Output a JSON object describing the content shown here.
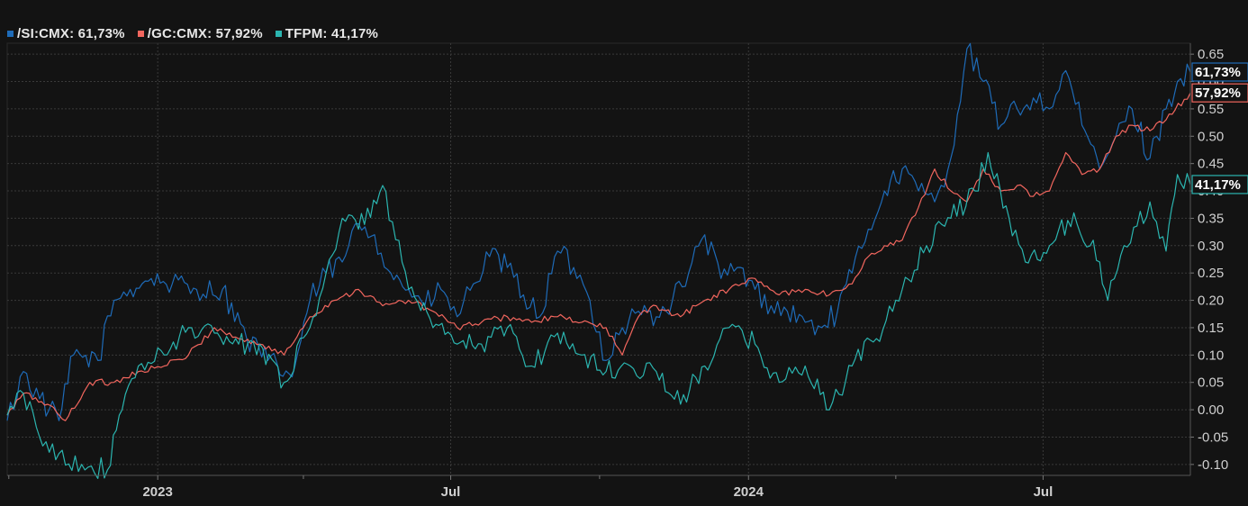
{
  "legend": [
    {
      "label": "/SI:CMX: 61,73%",
      "color": "#1e6bb8"
    },
    {
      "label": "/GC:CMX: 57,92%",
      "color": "#f2665e"
    },
    {
      "label": "TFPM: 41,17%",
      "color": "#2bb5b0"
    }
  ],
  "chart_data": {
    "type": "line",
    "x_range": [
      "2022-09-30",
      "2024-09-30"
    ],
    "ylim": [
      -0.12,
      0.67
    ],
    "y_ticks": [
      -0.1,
      -0.05,
      0.0,
      0.05,
      0.1,
      0.15,
      0.2,
      0.25,
      0.3,
      0.35,
      0.4,
      0.45,
      0.5,
      0.55,
      0.6,
      0.65
    ],
    "y_tick_labels": [
      "-0.10",
      "-0.05",
      "0.00",
      "0.05",
      "0.10",
      "0.15",
      "0.20",
      "0.25",
      "0.30",
      "0.35",
      "0.40",
      "0.45",
      "0.50",
      "0.55",
      "0.60",
      "0.65"
    ],
    "x_labels": [
      {
        "date": "2023-01-01",
        "label": "2023"
      },
      {
        "date": "2023-07-01",
        "label": "Jul"
      },
      {
        "date": "2024-01-01",
        "label": "2024"
      },
      {
        "date": "2024-07-01",
        "label": "Jul"
      }
    ],
    "x_minor_ticks": [
      "2022-10-01",
      "2023-04-01",
      "2023-10-01",
      "2024-04-01"
    ],
    "grid": true,
    "legend_position": "top-left",
    "series": [
      {
        "name": "/SI:CMX",
        "color": "#1e6bb8",
        "last_label": "61,73%",
        "last_value": 0.6173,
        "points": [
          [
            "2022-09-30",
            -0.02
          ],
          [
            "2022-10-10",
            0.07
          ],
          [
            "2022-10-20",
            0.02
          ],
          [
            "2022-11-01",
            -0.02
          ],
          [
            "2022-11-10",
            0.1
          ],
          [
            "2022-11-25",
            0.09
          ],
          [
            "2022-12-05",
            0.2
          ],
          [
            "2022-12-15",
            0.22
          ],
          [
            "2022-12-28",
            0.24
          ],
          [
            "2023-01-10",
            0.23
          ],
          [
            "2023-01-25",
            0.22
          ],
          [
            "2023-02-10",
            0.22
          ],
          [
            "2023-02-25",
            0.13
          ],
          [
            "2023-03-10",
            0.09
          ],
          [
            "2023-03-25",
            0.06
          ],
          [
            "2023-04-05",
            0.2
          ],
          [
            "2023-04-15",
            0.25
          ],
          [
            "2023-04-25",
            0.27
          ],
          [
            "2023-05-05",
            0.34
          ],
          [
            "2023-05-15",
            0.32
          ],
          [
            "2023-05-25",
            0.25
          ],
          [
            "2023-06-05",
            0.22
          ],
          [
            "2023-06-15",
            0.19
          ],
          [
            "2023-06-25",
            0.22
          ],
          [
            "2023-07-05",
            0.17
          ],
          [
            "2023-07-15",
            0.23
          ],
          [
            "2023-07-25",
            0.28
          ],
          [
            "2023-08-05",
            0.26
          ],
          [
            "2023-08-15",
            0.21
          ],
          [
            "2023-08-25",
            0.17
          ],
          [
            "2023-09-05",
            0.29
          ],
          [
            "2023-09-15",
            0.26
          ],
          [
            "2023-09-25",
            0.2
          ],
          [
            "2023-10-05",
            0.09
          ],
          [
            "2023-10-15",
            0.15
          ],
          [
            "2023-10-25",
            0.18
          ],
          [
            "2023-11-05",
            0.17
          ],
          [
            "2023-11-15",
            0.2
          ],
          [
            "2023-11-25",
            0.25
          ],
          [
            "2023-12-05",
            0.32
          ],
          [
            "2023-12-15",
            0.24
          ],
          [
            "2023-12-25",
            0.26
          ],
          [
            "2024-01-05",
            0.22
          ],
          [
            "2024-01-15",
            0.19
          ],
          [
            "2024-01-25",
            0.18
          ],
          [
            "2024-02-05",
            0.16
          ],
          [
            "2024-02-15",
            0.15
          ],
          [
            "2024-02-25",
            0.18
          ],
          [
            "2024-03-05",
            0.25
          ],
          [
            "2024-03-15",
            0.33
          ],
          [
            "2024-03-25",
            0.4
          ],
          [
            "2024-04-05",
            0.44
          ],
          [
            "2024-04-15",
            0.4
          ],
          [
            "2024-04-25",
            0.38
          ],
          [
            "2024-05-05",
            0.46
          ],
          [
            "2024-05-15",
            0.66
          ],
          [
            "2024-05-25",
            0.6
          ],
          [
            "2024-06-05",
            0.52
          ],
          [
            "2024-06-15",
            0.55
          ],
          [
            "2024-06-25",
            0.57
          ],
          [
            "2024-07-05",
            0.55
          ],
          [
            "2024-07-15",
            0.62
          ],
          [
            "2024-07-25",
            0.52
          ],
          [
            "2024-08-05",
            0.44
          ],
          [
            "2024-08-15",
            0.5
          ],
          [
            "2024-08-25",
            0.55
          ],
          [
            "2024-09-05",
            0.46
          ],
          [
            "2024-09-15",
            0.55
          ],
          [
            "2024-09-22",
            0.6
          ],
          [
            "2024-09-30",
            0.6173
          ]
        ]
      },
      {
        "name": "/GC:CMX",
        "color": "#f2665e",
        "last_label": "57,92%",
        "last_value": 0.5792,
        "points": [
          [
            "2022-09-30",
            -0.01
          ],
          [
            "2022-10-10",
            0.03
          ],
          [
            "2022-10-25",
            0.01
          ],
          [
            "2022-11-05",
            -0.02
          ],
          [
            "2022-11-20",
            0.05
          ],
          [
            "2022-12-05",
            0.05
          ],
          [
            "2022-12-20",
            0.07
          ],
          [
            "2023-01-05",
            0.08
          ],
          [
            "2023-01-20",
            0.1
          ],
          [
            "2023-02-05",
            0.15
          ],
          [
            "2023-02-20",
            0.13
          ],
          [
            "2023-03-05",
            0.12
          ],
          [
            "2023-03-20",
            0.1
          ],
          [
            "2023-04-05",
            0.17
          ],
          [
            "2023-04-20",
            0.2
          ],
          [
            "2023-05-05",
            0.22
          ],
          [
            "2023-05-20",
            0.19
          ],
          [
            "2023-06-05",
            0.2
          ],
          [
            "2023-06-20",
            0.18
          ],
          [
            "2023-07-05",
            0.15
          ],
          [
            "2023-07-20",
            0.16
          ],
          [
            "2023-08-05",
            0.17
          ],
          [
            "2023-08-20",
            0.16
          ],
          [
            "2023-09-05",
            0.17
          ],
          [
            "2023-09-20",
            0.16
          ],
          [
            "2023-10-05",
            0.15
          ],
          [
            "2023-10-15",
            0.1
          ],
          [
            "2023-10-25",
            0.17
          ],
          [
            "2023-11-05",
            0.19
          ],
          [
            "2023-11-20",
            0.17
          ],
          [
            "2023-12-05",
            0.2
          ],
          [
            "2023-12-20",
            0.22
          ],
          [
            "2024-01-05",
            0.24
          ],
          [
            "2024-01-20",
            0.21
          ],
          [
            "2024-02-05",
            0.22
          ],
          [
            "2024-02-20",
            0.21
          ],
          [
            "2024-03-05",
            0.23
          ],
          [
            "2024-03-15",
            0.28
          ],
          [
            "2024-03-25",
            0.3
          ],
          [
            "2024-04-05",
            0.31
          ],
          [
            "2024-04-15",
            0.37
          ],
          [
            "2024-04-25",
            0.44
          ],
          [
            "2024-05-05",
            0.4
          ],
          [
            "2024-05-15",
            0.38
          ],
          [
            "2024-05-25",
            0.44
          ],
          [
            "2024-06-05",
            0.4
          ],
          [
            "2024-06-15",
            0.41
          ],
          [
            "2024-06-25",
            0.39
          ],
          [
            "2024-07-05",
            0.4
          ],
          [
            "2024-07-15",
            0.47
          ],
          [
            "2024-07-25",
            0.43
          ],
          [
            "2024-08-05",
            0.44
          ],
          [
            "2024-08-15",
            0.5
          ],
          [
            "2024-08-25",
            0.52
          ],
          [
            "2024-09-05",
            0.51
          ],
          [
            "2024-09-15",
            0.53
          ],
          [
            "2024-09-30",
            0.5792
          ]
        ]
      },
      {
        "name": "TFPM",
        "color": "#2bb5b0",
        "last_label": "41,17%",
        "last_value": 0.4117,
        "points": [
          [
            "2022-09-30",
            -0.01
          ],
          [
            "2022-10-10",
            0.03
          ],
          [
            "2022-10-20",
            -0.05
          ],
          [
            "2022-11-01",
            -0.08
          ],
          [
            "2022-11-15",
            -0.1
          ],
          [
            "2022-12-01",
            -0.11
          ],
          [
            "2022-12-10",
            0.0
          ],
          [
            "2022-12-20",
            0.08
          ],
          [
            "2023-01-05",
            0.1
          ],
          [
            "2023-01-20",
            0.15
          ],
          [
            "2023-02-05",
            0.14
          ],
          [
            "2023-02-20",
            0.12
          ],
          [
            "2023-03-05",
            0.12
          ],
          [
            "2023-03-20",
            0.05
          ],
          [
            "2023-04-05",
            0.15
          ],
          [
            "2023-04-15",
            0.25
          ],
          [
            "2023-04-25",
            0.35
          ],
          [
            "2023-05-05",
            0.33
          ],
          [
            "2023-05-20",
            0.41
          ],
          [
            "2023-06-05",
            0.22
          ],
          [
            "2023-06-20",
            0.15
          ],
          [
            "2023-07-05",
            0.12
          ],
          [
            "2023-07-20",
            0.12
          ],
          [
            "2023-08-05",
            0.15
          ],
          [
            "2023-08-20",
            0.08
          ],
          [
            "2023-09-05",
            0.14
          ],
          [
            "2023-09-20",
            0.1
          ],
          [
            "2023-10-05",
            0.07
          ],
          [
            "2023-10-20",
            0.08
          ],
          [
            "2023-11-05",
            0.07
          ],
          [
            "2023-11-20",
            0.01
          ],
          [
            "2023-12-05",
            0.08
          ],
          [
            "2023-12-20",
            0.15
          ],
          [
            "2024-01-05",
            0.12
          ],
          [
            "2024-01-20",
            0.05
          ],
          [
            "2024-02-05",
            0.08
          ],
          [
            "2024-02-20",
            0.0
          ],
          [
            "2024-03-05",
            0.08
          ],
          [
            "2024-03-20",
            0.13
          ],
          [
            "2024-04-05",
            0.22
          ],
          [
            "2024-04-20",
            0.3
          ],
          [
            "2024-05-05",
            0.35
          ],
          [
            "2024-05-20",
            0.4
          ],
          [
            "2024-05-28",
            0.47
          ],
          [
            "2024-06-10",
            0.35
          ],
          [
            "2024-06-20",
            0.27
          ],
          [
            "2024-07-05",
            0.3
          ],
          [
            "2024-07-20",
            0.36
          ],
          [
            "2024-08-05",
            0.27
          ],
          [
            "2024-08-10",
            0.2
          ],
          [
            "2024-08-20",
            0.3
          ],
          [
            "2024-09-05",
            0.38
          ],
          [
            "2024-09-15",
            0.29
          ],
          [
            "2024-09-22",
            0.43
          ],
          [
            "2024-09-30",
            0.4117
          ]
        ]
      }
    ]
  }
}
